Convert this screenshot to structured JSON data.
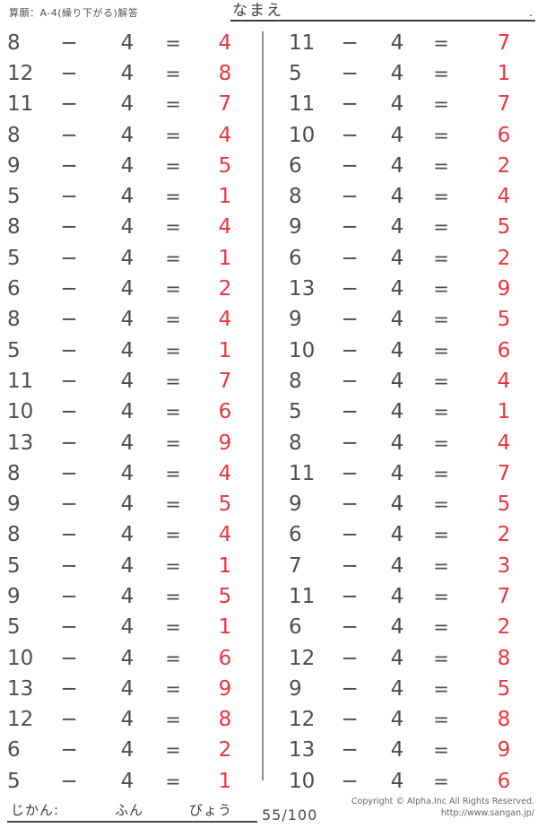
{
  "header": {
    "title": "算願：A-4(繰り下がる)解答",
    "name_label": "なまえ",
    "name_line_end": "."
  },
  "problems": {
    "operator": "−",
    "subtrahend": "4",
    "equals": "=",
    "left": [
      {
        "minuend": "8",
        "answer": "4"
      },
      {
        "minuend": "12",
        "answer": "8"
      },
      {
        "minuend": "11",
        "answer": "7"
      },
      {
        "minuend": "8",
        "answer": "4"
      },
      {
        "minuend": "9",
        "answer": "5"
      },
      {
        "minuend": "5",
        "answer": "1"
      },
      {
        "minuend": "8",
        "answer": "4"
      },
      {
        "minuend": "5",
        "answer": "1"
      },
      {
        "minuend": "6",
        "answer": "2"
      },
      {
        "minuend": "8",
        "answer": "4"
      },
      {
        "minuend": "5",
        "answer": "1"
      },
      {
        "minuend": "11",
        "answer": "7"
      },
      {
        "minuend": "10",
        "answer": "6"
      },
      {
        "minuend": "13",
        "answer": "9"
      },
      {
        "minuend": "8",
        "answer": "4"
      },
      {
        "minuend": "9",
        "answer": "5"
      },
      {
        "minuend": "8",
        "answer": "4"
      },
      {
        "minuend": "5",
        "answer": "1"
      },
      {
        "minuend": "9",
        "answer": "5"
      },
      {
        "minuend": "5",
        "answer": "1"
      },
      {
        "minuend": "10",
        "answer": "6"
      },
      {
        "minuend": "13",
        "answer": "9"
      },
      {
        "minuend": "12",
        "answer": "8"
      },
      {
        "minuend": "6",
        "answer": "2"
      },
      {
        "minuend": "5",
        "answer": "1"
      }
    ],
    "right": [
      {
        "minuend": "11",
        "answer": "7"
      },
      {
        "minuend": "5",
        "answer": "1"
      },
      {
        "minuend": "11",
        "answer": "7"
      },
      {
        "minuend": "10",
        "answer": "6"
      },
      {
        "minuend": "6",
        "answer": "2"
      },
      {
        "minuend": "8",
        "answer": "4"
      },
      {
        "minuend": "9",
        "answer": "5"
      },
      {
        "minuend": "6",
        "answer": "2"
      },
      {
        "minuend": "13",
        "answer": "9"
      },
      {
        "minuend": "9",
        "answer": "5"
      },
      {
        "minuend": "10",
        "answer": "6"
      },
      {
        "minuend": "8",
        "answer": "4"
      },
      {
        "minuend": "5",
        "answer": "1"
      },
      {
        "minuend": "8",
        "answer": "4"
      },
      {
        "minuend": "11",
        "answer": "7"
      },
      {
        "minuend": "9",
        "answer": "5"
      },
      {
        "minuend": "6",
        "answer": "2"
      },
      {
        "minuend": "7",
        "answer": "3"
      },
      {
        "minuend": "11",
        "answer": "7"
      },
      {
        "minuend": "6",
        "answer": "2"
      },
      {
        "minuend": "12",
        "answer": "8"
      },
      {
        "minuend": "9",
        "answer": "5"
      },
      {
        "minuend": "12",
        "answer": "8"
      },
      {
        "minuend": "13",
        "answer": "9"
      },
      {
        "minuend": "10",
        "answer": "6"
      }
    ]
  },
  "footer": {
    "time_label": "じかん:",
    "minutes_label": "ふん",
    "seconds_label": "びょう",
    "score": "55/100",
    "copyright_line1": "Copyright © Alpha.Inc All Rights Reserved.",
    "copyright_line2": "http://www.sangan.jp/"
  },
  "colors": {
    "answer_red": "#ee333e",
    "text_gray": "#4d4d4d"
  }
}
